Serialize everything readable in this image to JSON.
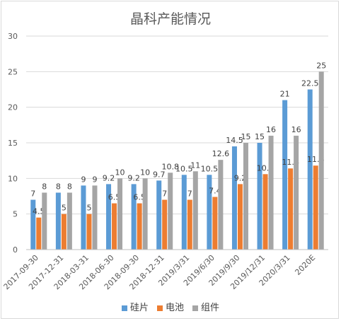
{
  "chart_data": {
    "type": "bar",
    "title": "晶科产能情况",
    "categories": [
      "2017-09-30",
      "2017-12-31",
      "2018-03-31",
      "2018-06-30",
      "2018-09-30",
      "2018-12-31",
      "2019/3/31",
      "2019/6/30",
      "2019/9/30",
      "2019/12/31",
      "2020/3/31",
      "2020E"
    ],
    "series": [
      {
        "name": "硅片",
        "color": "#5b9bd5",
        "values": [
          7,
          8,
          9,
          9.2,
          9.2,
          9.7,
          10.5,
          10.5,
          14.5,
          15,
          21,
          22.5
        ]
      },
      {
        "name": "电池",
        "color": "#ed7d31",
        "values": [
          4.5,
          5,
          5,
          6.5,
          6.5,
          7,
          7,
          7.4,
          9.2,
          10.6,
          11.4,
          11.8
        ]
      },
      {
        "name": "组件",
        "color": "#a5a5a5",
        "values": [
          8,
          8,
          9,
          10,
          10,
          10.8,
          11,
          12.6,
          15,
          16,
          16,
          25
        ]
      }
    ],
    "ylim": [
      0,
      30
    ],
    "yticks": [
      0,
      5,
      10,
      15,
      20,
      25,
      30
    ],
    "grid": true,
    "legend_position": "bottom"
  }
}
